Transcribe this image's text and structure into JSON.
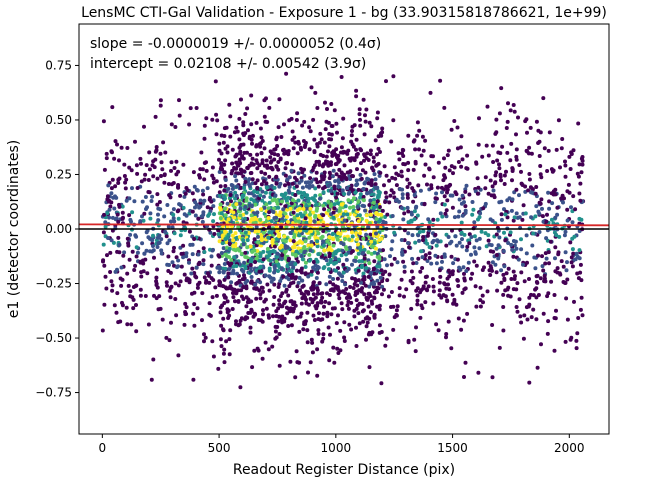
{
  "chart_data": {
    "type": "scatter",
    "title": "LensMC CTI-Gal Validation - Exposure 1 - bg (33.90315818786621, 1e+99)",
    "xlabel": "Readout Register Distance (pix)",
    "ylabel": "e1 (detector coordinates)",
    "xlim": [
      -100,
      2170
    ],
    "ylim": [
      -0.94,
      0.94
    ],
    "xticks": [
      0,
      500,
      1000,
      1500,
      2000
    ],
    "xtick_labels": [
      "0",
      "500",
      "1000",
      "1500",
      "2000"
    ],
    "yticks": [
      -0.75,
      -0.5,
      -0.25,
      0.0,
      0.25,
      0.5,
      0.75
    ],
    "ytick_labels": [
      "−0.75",
      "−0.50",
      "−0.25",
      "0.00",
      "0.25",
      "0.50",
      "0.75"
    ],
    "grid": false,
    "annotations": [
      "slope = -0.0000019 +/- 0.0000052 (0.4σ)",
      "intercept = 0.02108 +/- 0.00542 (3.9σ)"
    ],
    "fit_line": {
      "slope": -1.9e-06,
      "intercept": 0.02108,
      "color": "#d62728"
    },
    "zero_line": {
      "y": 0.0,
      "color": "#000000"
    },
    "points": {
      "x_range": [
        0,
        2060
      ],
      "y_range": [
        -0.85,
        0.72
      ],
      "colormap": "viridis",
      "density_peak_x": [
        500,
        1200
      ],
      "colors": [
        "#440154",
        "#3b528b",
        "#21918c",
        "#5ec962",
        "#fde725"
      ]
    }
  }
}
